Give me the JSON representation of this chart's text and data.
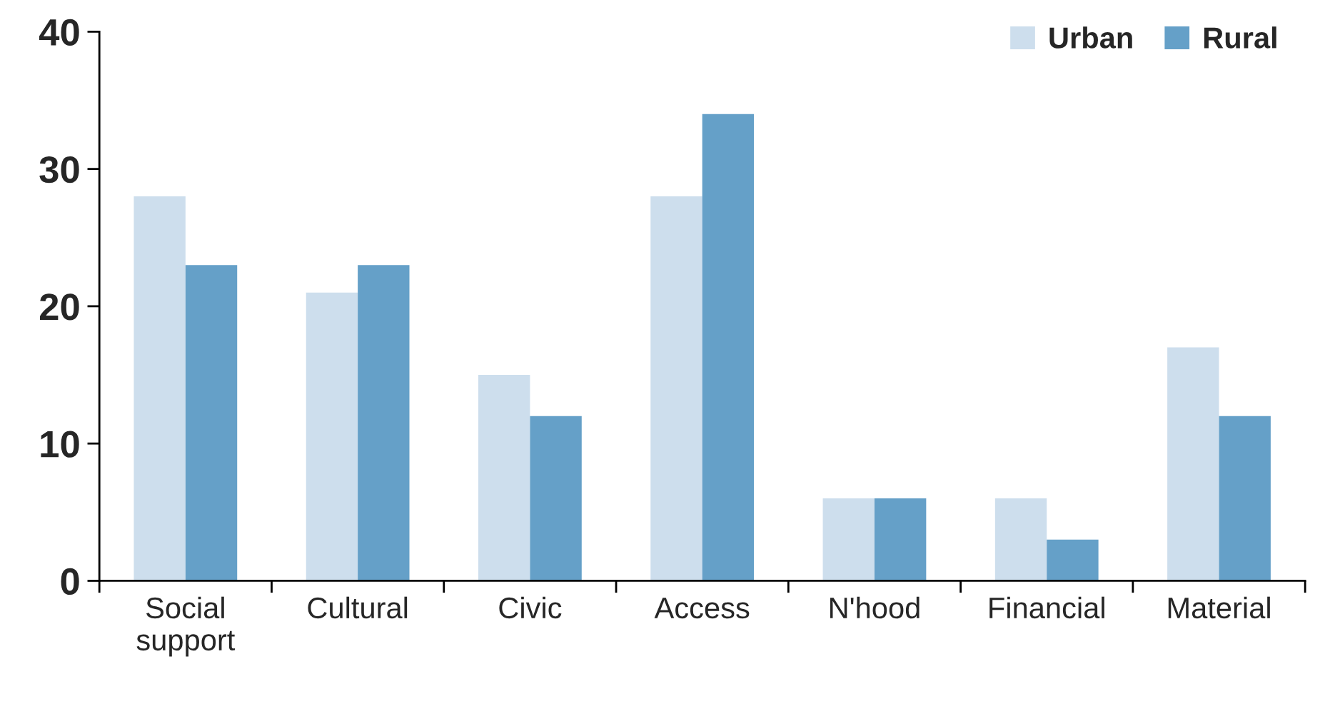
{
  "chart_data": {
    "type": "bar",
    "categories": [
      "Social\nsupport",
      "Cultural",
      "Civic",
      "Access",
      "N'hood",
      "Financial",
      "Material"
    ],
    "series": [
      {
        "name": "Urban",
        "color": "#cddeed",
        "values": [
          28,
          21,
          15,
          28,
          6,
          6,
          17
        ]
      },
      {
        "name": "Rural",
        "color": "#65a0c8",
        "values": [
          23,
          23,
          12,
          34,
          6,
          3,
          12
        ]
      }
    ],
    "ylim": [
      0,
      40
    ],
    "yticks": [
      0,
      10,
      20,
      30,
      40
    ],
    "legend": "top right",
    "grid": false
  }
}
